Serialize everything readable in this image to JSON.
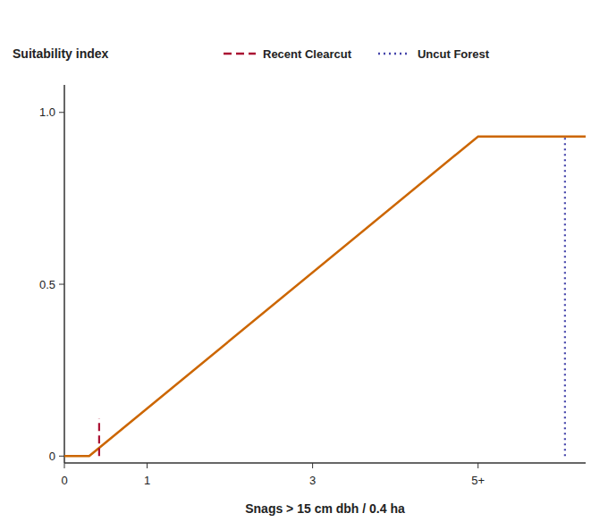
{
  "chart_data": {
    "type": "line",
    "ylabel": "Suitability index",
    "xlabel": "Snags > 15 cm dbh / 0.4 ha",
    "xlim": [
      0,
      6.3
    ],
    "ylim": [
      -0.02,
      1.08
    ],
    "xticks": [
      0,
      1,
      3,
      {
        "value": 5,
        "label": "5+"
      }
    ],
    "yticks": [
      0,
      0.5,
      {
        "value": 1.0,
        "label": "1.0"
      }
    ],
    "grid": false,
    "legend": "top",
    "series": [
      {
        "x": [
          0.0,
          0.3,
          5.0,
          6.3
        ],
        "values": [
          0.0,
          0.0,
          0.93,
          0.93
        ],
        "color": "#CC6600",
        "line_style": "solid"
      },
      {
        "name": "Recent Clearcut",
        "x": [
          0.42,
          0.42
        ],
        "values": [
          0.0,
          0.11
        ],
        "color": "#AA1133",
        "line_style": "dashed"
      },
      {
        "name": "Uncut Forest",
        "x": [
          6.05,
          6.05
        ],
        "values": [
          0.0,
          0.93
        ],
        "color": "#4444AA",
        "line_style": "dotted"
      }
    ]
  }
}
